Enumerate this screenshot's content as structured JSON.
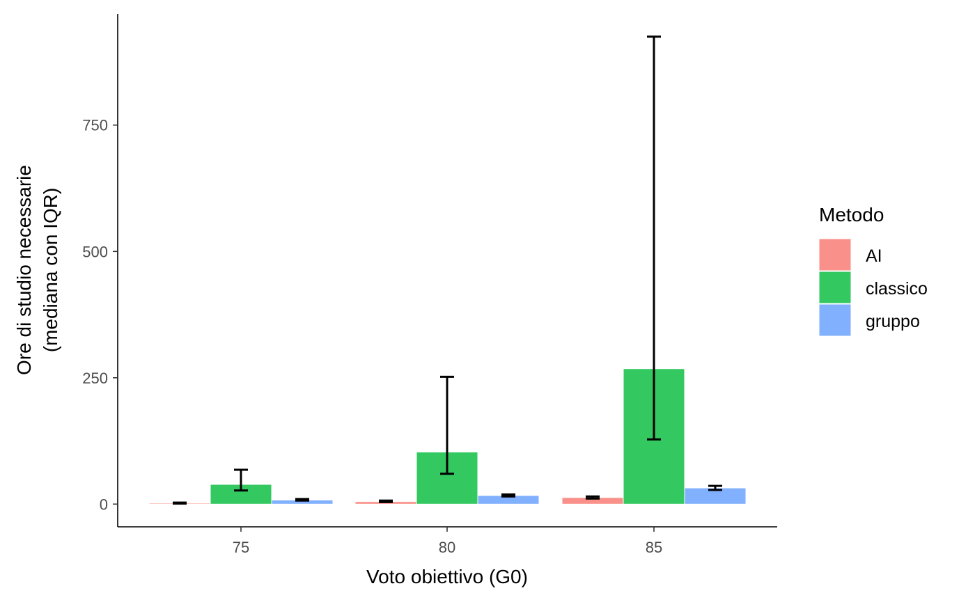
{
  "chart_data": {
    "type": "bar",
    "xlabel": "Voto obiettivo (G0)",
    "ylabel_lines": [
      "Ore di studio necessarie",
      "(mediana con IQR)"
    ],
    "categories": [
      "75",
      "80",
      "85"
    ],
    "ylim": [
      -45,
      970
    ],
    "yticks": [
      0,
      250,
      500,
      750
    ],
    "grid": false,
    "legend": {
      "title": "Metodo",
      "placement": "right"
    },
    "series": [
      {
        "name": "AI",
        "color": "#F8766D",
        "values": [
          2,
          5,
          13
        ],
        "iqr_low": [
          1,
          4,
          11
        ],
        "iqr_high": [
          3,
          7,
          15
        ]
      },
      {
        "name": "classico",
        "color": "#00BA38",
        "values": [
          39,
          103,
          268
        ],
        "iqr_low": [
          27,
          60,
          128
        ],
        "iqr_high": [
          68,
          252,
          925
        ]
      },
      {
        "name": "gruppo",
        "color": "#619CFF",
        "values": [
          8,
          17,
          32
        ],
        "iqr_low": [
          7,
          15,
          28
        ],
        "iqr_high": [
          10,
          19,
          36
        ]
      }
    ]
  }
}
